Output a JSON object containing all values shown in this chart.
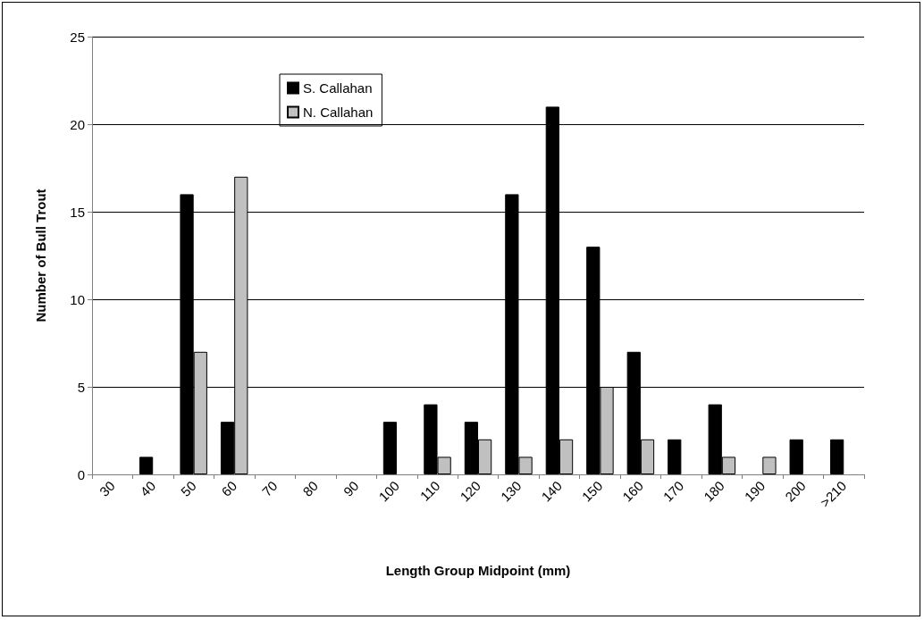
{
  "chart_data": {
    "type": "bar",
    "xlabel": "Length Group Midpoint (mm)",
    "ylabel": "Number of Bull Trout",
    "categories": [
      "30",
      "40",
      "50",
      "60",
      "70",
      "80",
      "90",
      "100",
      "110",
      "120",
      "130",
      "140",
      "150",
      "160",
      "170",
      "180",
      "190",
      "200",
      ">210"
    ],
    "series": [
      {
        "name": "S. Callahan",
        "color": "#000000",
        "values": [
          0,
          1,
          16,
          3,
          0,
          0,
          0,
          3,
          4,
          3,
          16,
          21,
          13,
          7,
          2,
          4,
          0,
          2,
          2
        ]
      },
      {
        "name": "N. Callahan",
        "color": "#c0c0c0",
        "values": [
          0,
          0,
          7,
          17,
          0,
          0,
          0,
          0,
          1,
          2,
          1,
          2,
          5,
          2,
          0,
          1,
          1,
          0,
          0
        ]
      }
    ],
    "ylim": [
      0,
      25
    ],
    "yticks": [
      0,
      5,
      10,
      15,
      20,
      25
    ],
    "grid": "y",
    "legend": "top left"
  }
}
